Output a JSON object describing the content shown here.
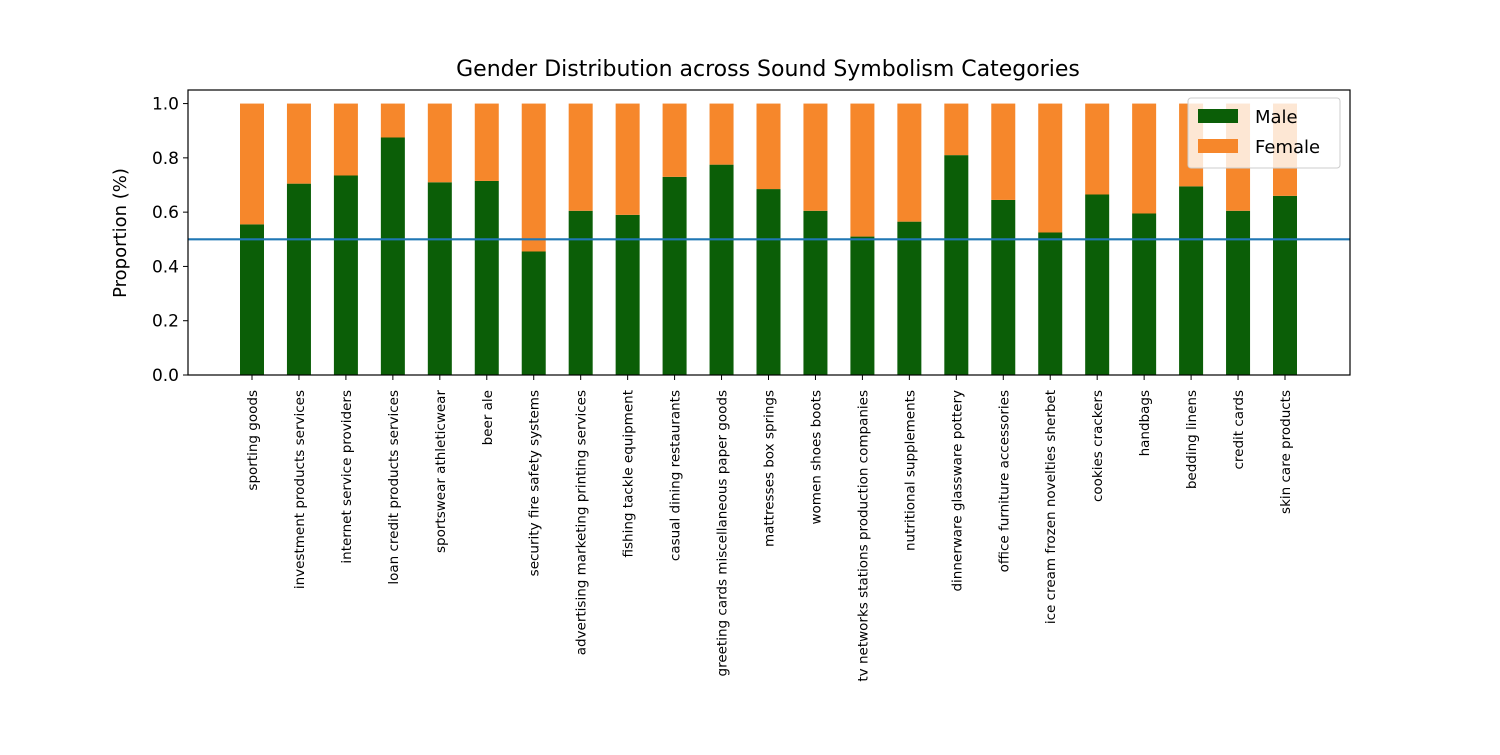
{
  "chart_data": {
    "type": "bar",
    "stacked": true,
    "title": "Gender Distribution across Sound Symbolism Categories",
    "xlabel": "",
    "ylabel": "Proportion (%)",
    "ylim": [
      0,
      1.05
    ],
    "yticks": [
      "0.0",
      "0.2",
      "0.4",
      "0.6",
      "0.8",
      "1.0"
    ],
    "categories": [
      "sporting goods",
      "investment products services",
      "internet service providers",
      "loan credit products services",
      "sportswear athleticwear",
      "beer ale",
      "security fire safety systems",
      "advertising marketing printing services",
      "fishing tackle equipment",
      "casual dining restaurants",
      "greeting cards miscellaneous paper goods",
      "mattresses box springs",
      "women shoes boots",
      "tv networks stations production companies",
      "nutritional supplements",
      "dinnerware glassware pottery",
      "office furniture accessories",
      "ice cream frozen novelties sherbet",
      "cookies crackers",
      "handbags",
      "bedding linens",
      "credit cards",
      "skin care products"
    ],
    "series": [
      {
        "name": "Male",
        "color": "#0b5e07",
        "values": [
          0.555,
          0.705,
          0.735,
          0.875,
          0.71,
          0.715,
          0.455,
          0.605,
          0.59,
          0.73,
          0.775,
          0.685,
          0.605,
          0.51,
          0.565,
          0.81,
          0.645,
          0.525,
          0.665,
          0.595,
          0.695,
          0.605,
          0.66
        ]
      },
      {
        "name": "Female",
        "color": "#f6872b",
        "values": [
          0.445,
          0.295,
          0.265,
          0.125,
          0.29,
          0.285,
          0.545,
          0.395,
          0.41,
          0.27,
          0.225,
          0.315,
          0.395,
          0.49,
          0.435,
          0.19,
          0.355,
          0.475,
          0.335,
          0.405,
          0.305,
          0.395,
          0.34
        ]
      }
    ],
    "reference_line": {
      "y": 0.5,
      "color": "#1f77b4"
    },
    "legend_position": "top-right",
    "grid": false
  }
}
